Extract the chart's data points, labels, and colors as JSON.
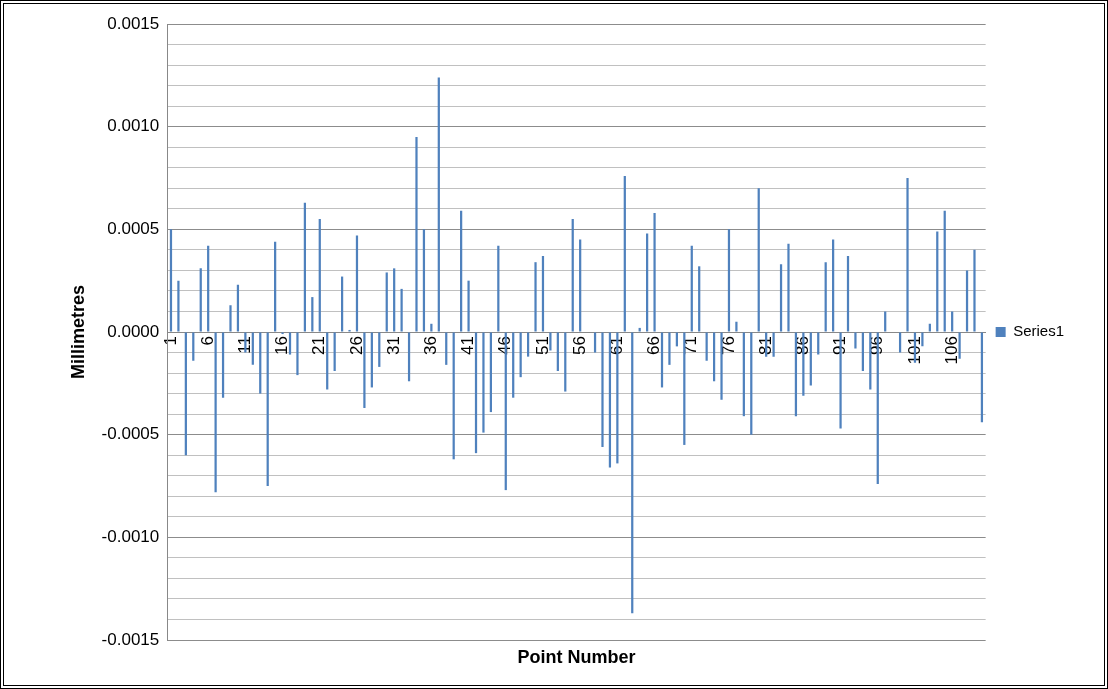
{
  "chart_data": {
    "type": "bar",
    "xlabel": "Point Number",
    "ylabel": "Millimetres",
    "categories": [
      "1",
      null,
      null,
      null,
      null,
      "6",
      null,
      null,
      null,
      null,
      "11",
      null,
      null,
      null,
      null,
      "16",
      null,
      null,
      null,
      null,
      "21",
      null,
      null,
      null,
      null,
      "26",
      null,
      null,
      null,
      null,
      "31",
      null,
      null,
      null,
      null,
      "36",
      null,
      null,
      null,
      null,
      "41",
      null,
      null,
      null,
      null,
      "46",
      null,
      null,
      null,
      null,
      "51",
      null,
      null,
      null,
      null,
      "56",
      null,
      null,
      null,
      null,
      "61",
      null,
      null,
      null,
      null,
      "66",
      null,
      null,
      null,
      null,
      "71",
      null,
      null,
      null,
      null,
      "76",
      null,
      null,
      null,
      null,
      "81",
      null,
      null,
      null,
      null,
      "86",
      null,
      null,
      null,
      null,
      "91",
      null,
      null,
      null,
      null,
      "96",
      null,
      null,
      null,
      null,
      "101",
      null,
      null,
      null,
      null,
      "106",
      null,
      null,
      null,
      null
    ],
    "series": [
      {
        "name": "Series1",
        "color": "#4f81bd",
        "values": [
          0.0005,
          0.00025,
          -0.0006,
          -0.00014,
          0.00031,
          0.00042,
          -0.00078,
          -0.00032,
          0.00013,
          0.00023,
          -0.0001,
          -0.00016,
          -0.0003,
          -0.00075,
          0.00044,
          -1e-05,
          -0.00011,
          -0.00021,
          0.00063,
          0.00017,
          0.00055,
          -0.00028,
          -0.00019,
          0.00027,
          1e-05,
          0.00047,
          -0.00037,
          -0.00027,
          -0.00017,
          0.00029,
          0.00031,
          0.00021,
          -0.00024,
          0.00095,
          0.0005,
          4e-05,
          0.00124,
          -0.00016,
          -0.00062,
          0.00059,
          0.00025,
          -0.00059,
          -0.00049,
          -0.00039,
          0.00042,
          -0.00077,
          -0.00032,
          -0.00022,
          -0.00012,
          0.00034,
          0.00037,
          -9e-05,
          -0.00019,
          -0.00029,
          0.00055,
          0.00045,
          0,
          -0.0001,
          -0.00056,
          -0.00066,
          -0.00064,
          0.00076,
          -0.00137,
          2e-05,
          0.00048,
          0.00058,
          -0.00027,
          -0.00016,
          -7e-05,
          -0.00055,
          0.00042,
          0.00032,
          -0.00014,
          -0.00024,
          -0.00033,
          0.0005,
          5e-05,
          -0.00041,
          -0.0005,
          0.0007,
          -0.00012,
          -0.00012,
          0.00033,
          0.00043,
          -0.00041,
          -0.00031,
          -0.00026,
          -0.00011,
          0.00034,
          0.00045,
          -0.00047,
          0.00037,
          -8e-05,
          -0.00019,
          -0.00028,
          -0.00074,
          0.0001,
          0,
          -0.0001,
          0.00075,
          -0.00015,
          -7e-05,
          4e-05,
          0.00049,
          0.00059,
          0.0001,
          -0.00013,
          0.0003,
          0.0004,
          -0.00044
        ]
      }
    ],
    "ylim": [
      -0.0015,
      0.0015
    ],
    "yticks": [
      {
        "value": -0.0015,
        "label": "-0.0015"
      },
      {
        "value": -0.0014,
        "label": null
      },
      {
        "value": -0.0013,
        "label": null
      },
      {
        "value": -0.0012,
        "label": null
      },
      {
        "value": -0.0011,
        "label": null
      },
      {
        "value": -0.001,
        "label": "-0.0010"
      },
      {
        "value": -0.0009,
        "label": null
      },
      {
        "value": -0.0008,
        "label": null
      },
      {
        "value": -0.0007,
        "label": null
      },
      {
        "value": -0.0006,
        "label": null
      },
      {
        "value": -0.0005,
        "label": "-0.0005"
      },
      {
        "value": -0.0004,
        "label": null
      },
      {
        "value": -0.0003,
        "label": null
      },
      {
        "value": -0.0002,
        "label": null
      },
      {
        "value": -0.0001,
        "label": null
      },
      {
        "value": 0,
        "label": "0.0000"
      },
      {
        "value": 0.0001,
        "label": null
      },
      {
        "value": 0.0002,
        "label": null
      },
      {
        "value": 0.0003,
        "label": null
      },
      {
        "value": 0.0004,
        "label": null
      },
      {
        "value": 0.0005,
        "label": "0.0005"
      },
      {
        "value": 0.0006,
        "label": null
      },
      {
        "value": 0.0007,
        "label": null
      },
      {
        "value": 0.0008,
        "label": null
      },
      {
        "value": 0.0009,
        "label": null
      },
      {
        "value": 0.001,
        "label": "0.0010"
      },
      {
        "value": 0.0011,
        "label": null
      },
      {
        "value": 0.0012,
        "label": null
      },
      {
        "value": 0.0013,
        "label": null
      },
      {
        "value": 0.0014,
        "label": null
      },
      {
        "value": 0.0015,
        "label": "0.0015"
      }
    ],
    "grid": "y",
    "legend": "right"
  }
}
